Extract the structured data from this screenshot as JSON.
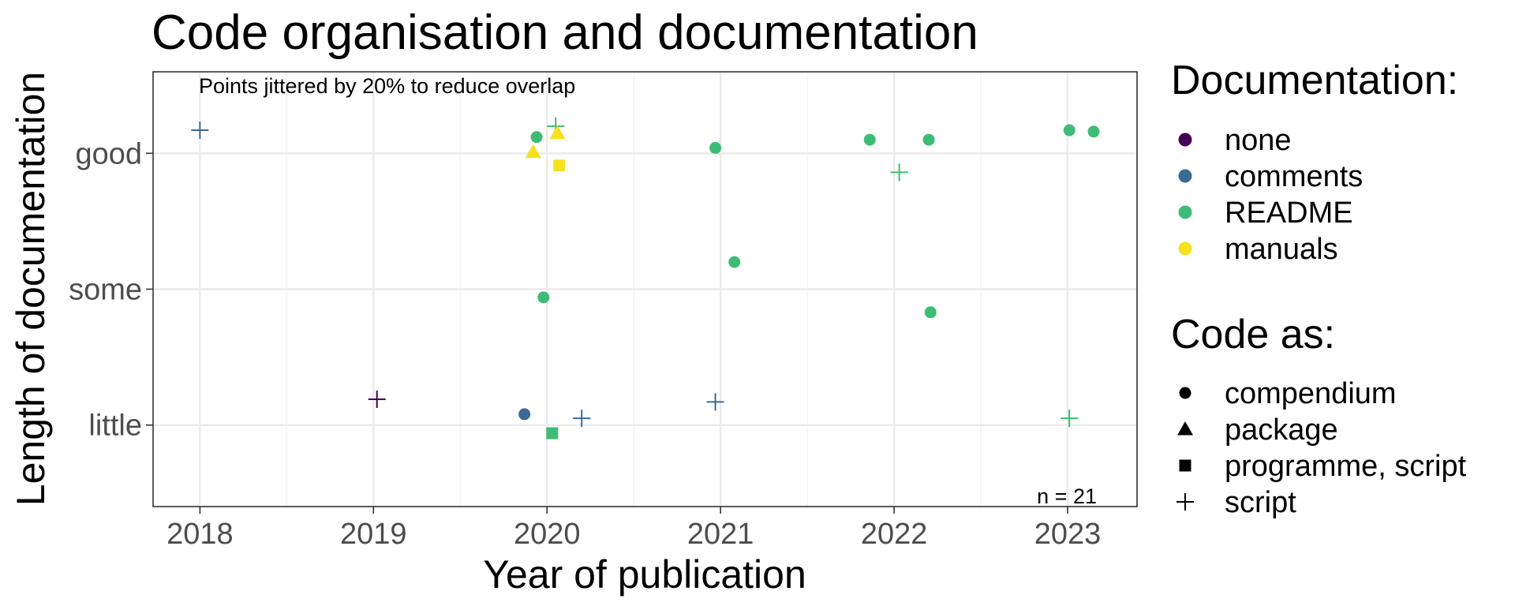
{
  "chart_data": {
    "type": "scatter",
    "title": "Code organisation and documentation",
    "xlabel": "Year of publication",
    "ylabel": "Length of documentation",
    "xlim": [
      2017.73,
      2023.4
    ],
    "ylim": [
      0.4,
      3.6
    ],
    "x_ticks": [
      2018,
      2019,
      2020,
      2021,
      2022,
      2023
    ],
    "y_categories": [
      "little",
      "some",
      "good"
    ],
    "grid": true,
    "legend_placement": "right",
    "annotations": {
      "jitter_note": "Points jittered by 20% to reduce overlap",
      "n_label": "n = 21"
    },
    "colors": {
      "none": "#440154",
      "comments": "#3b6b93",
      "README": "#3dbc74",
      "manuals": "#f5e21e"
    },
    "legends": {
      "color": {
        "title": "Documentation:",
        "items": [
          {
            "label": "none",
            "key": "none"
          },
          {
            "label": "comments",
            "key": "comments"
          },
          {
            "label": "README",
            "key": "README"
          },
          {
            "label": "manuals",
            "key": "manuals"
          }
        ]
      },
      "shape": {
        "title": "Code as:",
        "items": [
          {
            "label": "compendium",
            "shape": "circle"
          },
          {
            "label": "package",
            "shape": "triangle"
          },
          {
            "label": "programme, script",
            "shape": "square"
          },
          {
            "label": "script",
            "shape": "plus"
          }
        ]
      }
    },
    "points": [
      {
        "x": 2018.0,
        "y": 3.17,
        "doc": "comments",
        "code": "script"
      },
      {
        "x": 2019.02,
        "y": 1.19,
        "doc": "none",
        "code": "script"
      },
      {
        "x": 2019.87,
        "y": 1.08,
        "doc": "comments",
        "code": "compendium"
      },
      {
        "x": 2019.94,
        "y": 3.12,
        "doc": "README",
        "code": "compendium"
      },
      {
        "x": 2019.92,
        "y": 3.01,
        "doc": "manuals",
        "code": "package"
      },
      {
        "x": 2020.05,
        "y": 3.2,
        "doc": "README",
        "code": "script"
      },
      {
        "x": 2020.06,
        "y": 3.15,
        "doc": "manuals",
        "code": "package"
      },
      {
        "x": 2020.07,
        "y": 2.91,
        "doc": "manuals",
        "code": "programme, script"
      },
      {
        "x": 2019.98,
        "y": 1.94,
        "doc": "README",
        "code": "compendium"
      },
      {
        "x": 2020.03,
        "y": 0.94,
        "doc": "README",
        "code": "programme, script"
      },
      {
        "x": 2020.2,
        "y": 1.05,
        "doc": "comments",
        "code": "script"
      },
      {
        "x": 2020.97,
        "y": 3.04,
        "doc": "README",
        "code": "compendium"
      },
      {
        "x": 2021.08,
        "y": 2.2,
        "doc": "README",
        "code": "compendium"
      },
      {
        "x": 2020.97,
        "y": 1.17,
        "doc": "comments",
        "code": "script"
      },
      {
        "x": 2021.86,
        "y": 3.1,
        "doc": "README",
        "code": "compendium"
      },
      {
        "x": 2022.2,
        "y": 3.1,
        "doc": "README",
        "code": "compendium"
      },
      {
        "x": 2022.03,
        "y": 2.86,
        "doc": "README",
        "code": "script"
      },
      {
        "x": 2022.21,
        "y": 1.83,
        "doc": "README",
        "code": "compendium"
      },
      {
        "x": 2023.01,
        "y": 3.17,
        "doc": "README",
        "code": "compendium"
      },
      {
        "x": 2023.15,
        "y": 3.16,
        "doc": "README",
        "code": "compendium"
      },
      {
        "x": 2023.01,
        "y": 1.05,
        "doc": "README",
        "code": "script"
      }
    ]
  }
}
